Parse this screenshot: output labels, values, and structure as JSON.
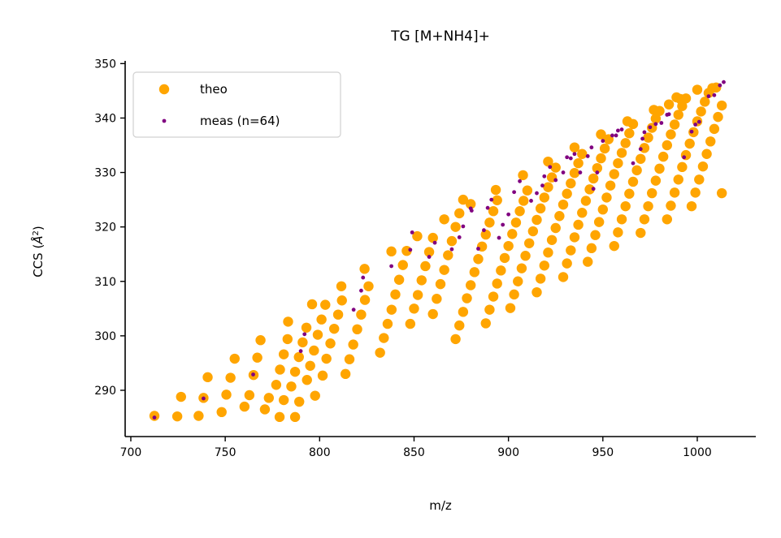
{
  "chart_data": {
    "type": "scatter",
    "title": "TG [M+NH4]+",
    "xlabel": "m/z",
    "ylabel": "CCS (Å²)",
    "xlim": [
      697,
      1031
    ],
    "ylim": [
      281.5,
      350.5
    ],
    "xticks": [
      700,
      750,
      800,
      850,
      900,
      950,
      1000
    ],
    "yticks": [
      290,
      300,
      310,
      320,
      330,
      340,
      350
    ],
    "grid": false,
    "legend_position": "top-left",
    "colors": {
      "theo": "#FFA500",
      "meas": "#800080"
    },
    "series": [
      {
        "name": "theo",
        "color": "#FFA500",
        "points": [
          [
            712.5,
            285.3
          ],
          [
            724.6,
            285.2
          ],
          [
            735.9,
            285.3
          ],
          [
            748.1,
            286.0
          ],
          [
            760.2,
            287.0
          ],
          [
            771.0,
            286.5
          ],
          [
            778.8,
            285.1
          ],
          [
            787.0,
            285.1
          ],
          [
            726.6,
            288.8
          ],
          [
            738.5,
            288.6
          ],
          [
            750.6,
            289.2
          ],
          [
            762.8,
            289.1
          ],
          [
            773.1,
            288.6
          ],
          [
            781.0,
            288.2
          ],
          [
            789.2,
            287.9
          ],
          [
            797.6,
            289.0
          ],
          [
            740.7,
            292.4
          ],
          [
            752.8,
            292.3
          ],
          [
            765.0,
            292.8
          ],
          [
            777.0,
            291.0
          ],
          [
            785.0,
            290.7
          ],
          [
            793.3,
            291.9
          ],
          [
            801.6,
            292.7
          ],
          [
            813.7,
            293.0
          ],
          [
            755.0,
            295.8
          ],
          [
            767.0,
            296.0
          ],
          [
            779.0,
            293.8
          ],
          [
            787.0,
            293.4
          ],
          [
            795.0,
            294.5
          ],
          [
            803.6,
            295.8
          ],
          [
            815.8,
            295.7
          ],
          [
            832.0,
            296.9
          ],
          [
            768.7,
            299.2
          ],
          [
            781.0,
            296.6
          ],
          [
            789.0,
            296.1
          ],
          [
            797.0,
            297.3
          ],
          [
            805.7,
            298.6
          ],
          [
            817.8,
            298.4
          ],
          [
            834.0,
            299.6
          ],
          [
            783.0,
            299.4
          ],
          [
            791.0,
            298.8
          ],
          [
            799.0,
            300.2
          ],
          [
            807.7,
            301.3
          ],
          [
            819.9,
            301.2
          ],
          [
            836.0,
            302.2
          ],
          [
            783.3,
            302.6
          ],
          [
            793.0,
            301.5
          ],
          [
            801.0,
            303.0
          ],
          [
            809.8,
            303.9
          ],
          [
            822.0,
            303.9
          ],
          [
            838.1,
            304.8
          ],
          [
            848.0,
            302.2
          ],
          [
            860.0,
            304.0
          ],
          [
            796.0,
            305.8
          ],
          [
            803.0,
            305.7
          ],
          [
            811.8,
            306.5
          ],
          [
            824.0,
            306.6
          ],
          [
            840.1,
            307.6
          ],
          [
            850.0,
            305.0
          ],
          [
            862.0,
            306.8
          ],
          [
            811.5,
            309.1
          ],
          [
            825.9,
            309.1
          ],
          [
            842.1,
            310.3
          ],
          [
            852.0,
            307.5
          ],
          [
            864.0,
            309.5
          ],
          [
            823.8,
            312.3
          ],
          [
            844.1,
            313.0
          ],
          [
            854.0,
            310.2
          ],
          [
            866.0,
            312.1
          ],
          [
            838.0,
            315.5
          ],
          [
            846.1,
            315.6
          ],
          [
            856.0,
            312.8
          ],
          [
            868.0,
            314.8
          ],
          [
            851.7,
            318.3
          ],
          [
            858.0,
            315.4
          ],
          [
            870.0,
            317.4
          ],
          [
            860.0,
            318.0
          ],
          [
            872.0,
            320.0
          ],
          [
            866.0,
            321.4
          ],
          [
            874.0,
            322.5
          ],
          [
            880.0,
            324.2
          ],
          [
            876.0,
            325.0
          ],
          [
            872.0,
            299.4
          ],
          [
            874.0,
            301.9
          ],
          [
            876.0,
            304.4
          ],
          [
            878.0,
            306.9
          ],
          [
            880.0,
            309.3
          ],
          [
            882.0,
            311.7
          ],
          [
            884.0,
            314.1
          ],
          [
            886.0,
            316.4
          ],
          [
            888.0,
            318.6
          ],
          [
            890.0,
            320.8
          ],
          [
            892.0,
            322.9
          ],
          [
            894.0,
            324.9
          ],
          [
            888.0,
            302.3
          ],
          [
            890.0,
            304.8
          ],
          [
            892.0,
            307.2
          ],
          [
            894.0,
            309.6
          ],
          [
            896.0,
            312.0
          ],
          [
            898.0,
            314.3
          ],
          [
            900.0,
            316.5
          ],
          [
            902.0,
            318.7
          ],
          [
            904.0,
            320.8
          ],
          [
            906.0,
            322.9
          ],
          [
            908.0,
            324.8
          ],
          [
            910.0,
            326.7
          ],
          [
            893.3,
            326.8
          ],
          [
            907.7,
            329.5
          ],
          [
            921.0,
            332.0
          ],
          [
            935.0,
            334.6
          ],
          [
            949.0,
            337.0
          ],
          [
            963.0,
            339.4
          ],
          [
            977.0,
            341.5
          ],
          [
            991.0,
            343.5
          ],
          [
            901.0,
            305.1
          ],
          [
            903.0,
            307.6
          ],
          [
            905.0,
            310.0
          ],
          [
            907.0,
            312.4
          ],
          [
            909.0,
            314.7
          ],
          [
            911.0,
            317.0
          ],
          [
            913.0,
            319.2
          ],
          [
            915.0,
            321.3
          ],
          [
            917.0,
            323.4
          ],
          [
            919.0,
            325.4
          ],
          [
            921.0,
            327.3
          ],
          [
            923.0,
            329.1
          ],
          [
            925.0,
            330.9
          ],
          [
            915.0,
            308.0
          ],
          [
            917.0,
            310.5
          ],
          [
            919.0,
            312.9
          ],
          [
            921.0,
            315.3
          ],
          [
            923.0,
            317.6
          ],
          [
            925.0,
            319.8
          ],
          [
            927.0,
            322.0
          ],
          [
            929.0,
            324.1
          ],
          [
            931.0,
            326.1
          ],
          [
            933.0,
            328.0
          ],
          [
            935.0,
            329.9
          ],
          [
            937.0,
            331.7
          ],
          [
            939.0,
            333.4
          ],
          [
            929.0,
            310.8
          ],
          [
            931.0,
            313.3
          ],
          [
            933.0,
            315.7
          ],
          [
            935.0,
            318.1
          ],
          [
            937.0,
            320.4
          ],
          [
            939.0,
            322.6
          ],
          [
            941.0,
            324.8
          ],
          [
            943.0,
            326.9
          ],
          [
            945.0,
            328.9
          ],
          [
            947.0,
            330.8
          ],
          [
            949.0,
            332.6
          ],
          [
            951.0,
            334.4
          ],
          [
            953.0,
            336.1
          ],
          [
            942.0,
            313.6
          ],
          [
            944.0,
            316.1
          ],
          [
            946.0,
            318.5
          ],
          [
            948.0,
            320.9
          ],
          [
            950.0,
            323.2
          ],
          [
            952.0,
            325.4
          ],
          [
            954.0,
            327.6
          ],
          [
            956.0,
            329.7
          ],
          [
            958.0,
            331.7
          ],
          [
            960.0,
            333.6
          ],
          [
            962.0,
            335.4
          ],
          [
            964.0,
            337.2
          ],
          [
            966.0,
            338.9
          ],
          [
            956.0,
            316.5
          ],
          [
            958.0,
            319.0
          ],
          [
            960.0,
            321.4
          ],
          [
            962.0,
            323.8
          ],
          [
            964.0,
            326.1
          ],
          [
            966.0,
            328.3
          ],
          [
            968.0,
            330.4
          ],
          [
            970.0,
            332.5
          ],
          [
            972.0,
            334.5
          ],
          [
            974.0,
            336.4
          ],
          [
            976.0,
            338.2
          ],
          [
            978.0,
            339.9
          ],
          [
            980.0,
            341.3
          ],
          [
            970.0,
            318.9
          ],
          [
            972.0,
            321.4
          ],
          [
            974.0,
            323.8
          ],
          [
            976.0,
            326.2
          ],
          [
            978.0,
            328.5
          ],
          [
            980.0,
            330.7
          ],
          [
            982.0,
            332.9
          ],
          [
            984.0,
            335.0
          ],
          [
            986.0,
            337.0
          ],
          [
            988.0,
            338.8
          ],
          [
            990.0,
            340.6
          ],
          [
            992.0,
            342.2
          ],
          [
            994.0,
            343.6
          ],
          [
            984.0,
            321.4
          ],
          [
            986.0,
            323.9
          ],
          [
            988.0,
            326.3
          ],
          [
            990.0,
            328.7
          ],
          [
            992.0,
            331.0
          ],
          [
            994.0,
            333.2
          ],
          [
            996.0,
            335.3
          ],
          [
            998.0,
            337.4
          ],
          [
            1000.0,
            339.4
          ],
          [
            1002.0,
            341.2
          ],
          [
            1004.0,
            343.0
          ],
          [
            1006.0,
            344.6
          ],
          [
            1008.0,
            345.5
          ],
          [
            997.0,
            323.8
          ],
          [
            999.0,
            326.3
          ],
          [
            1001.0,
            328.7
          ],
          [
            1003.0,
            331.1
          ],
          [
            1005.0,
            333.4
          ],
          [
            1007.0,
            335.7
          ],
          [
            1009.0,
            338.0
          ],
          [
            1011.0,
            340.2
          ],
          [
            1013.0,
            342.3
          ],
          [
            1013.0,
            326.2
          ],
          [
            985.0,
            342.5
          ],
          [
            989.0,
            343.8
          ],
          [
            1000.0,
            345.2
          ],
          [
            1010.0,
            345.6
          ]
        ]
      },
      {
        "name": "meas (n=64)",
        "color": "#800080",
        "points": [
          [
            712.5,
            285.0
          ],
          [
            738.5,
            288.5
          ],
          [
            764.8,
            292.9
          ],
          [
            790.0,
            297.2
          ],
          [
            792.0,
            300.3
          ],
          [
            818.0,
            304.8
          ],
          [
            822.0,
            308.3
          ],
          [
            823.0,
            310.7
          ],
          [
            838.0,
            312.8
          ],
          [
            848.0,
            315.8
          ],
          [
            849.0,
            319.0
          ],
          [
            858.0,
            314.5
          ],
          [
            861.0,
            317.1
          ],
          [
            870.0,
            315.9
          ],
          [
            874.0,
            318.1
          ],
          [
            876.0,
            320.1
          ],
          [
            880.0,
            323.4
          ],
          [
            880.5,
            323.0
          ],
          [
            884.0,
            316.0
          ],
          [
            887.0,
            319.4
          ],
          [
            889.0,
            323.5
          ],
          [
            891.0,
            325.0
          ],
          [
            895.0,
            318.0
          ],
          [
            897.0,
            320.4
          ],
          [
            900.0,
            322.3
          ],
          [
            903.0,
            326.4
          ],
          [
            906.0,
            328.4
          ],
          [
            912.0,
            324.8
          ],
          [
            915.0,
            326.2
          ],
          [
            918.0,
            327.6
          ],
          [
            919.0,
            329.3
          ],
          [
            922.0,
            331.0
          ],
          [
            925.0,
            328.6
          ],
          [
            929.0,
            330.0
          ],
          [
            931.0,
            332.8
          ],
          [
            933.0,
            332.6
          ],
          [
            935.0,
            333.4
          ],
          [
            938.0,
            330.0
          ],
          [
            942.0,
            333.0
          ],
          [
            944.0,
            334.6
          ],
          [
            945.0,
            327.0
          ],
          [
            947.0,
            330.0
          ],
          [
            950.0,
            335.8
          ],
          [
            955.0,
            336.8
          ],
          [
            957.0,
            336.8
          ],
          [
            958.0,
            337.7
          ],
          [
            960.0,
            337.9
          ],
          [
            966.0,
            331.7
          ],
          [
            970.0,
            334.3
          ],
          [
            971.0,
            336.2
          ],
          [
            972.0,
            337.4
          ],
          [
            975.0,
            338.3
          ],
          [
            978.0,
            338.9
          ],
          [
            981.0,
            339.1
          ],
          [
            984.0,
            340.6
          ],
          [
            985.0,
            340.7
          ],
          [
            993.0,
            332.8
          ],
          [
            997.0,
            337.5
          ],
          [
            999.0,
            338.8
          ],
          [
            1001.0,
            339.3
          ],
          [
            1006.0,
            344.0
          ],
          [
            1009.0,
            344.2
          ],
          [
            1012.0,
            346.0
          ],
          [
            1014.0,
            346.6
          ]
        ]
      }
    ]
  }
}
